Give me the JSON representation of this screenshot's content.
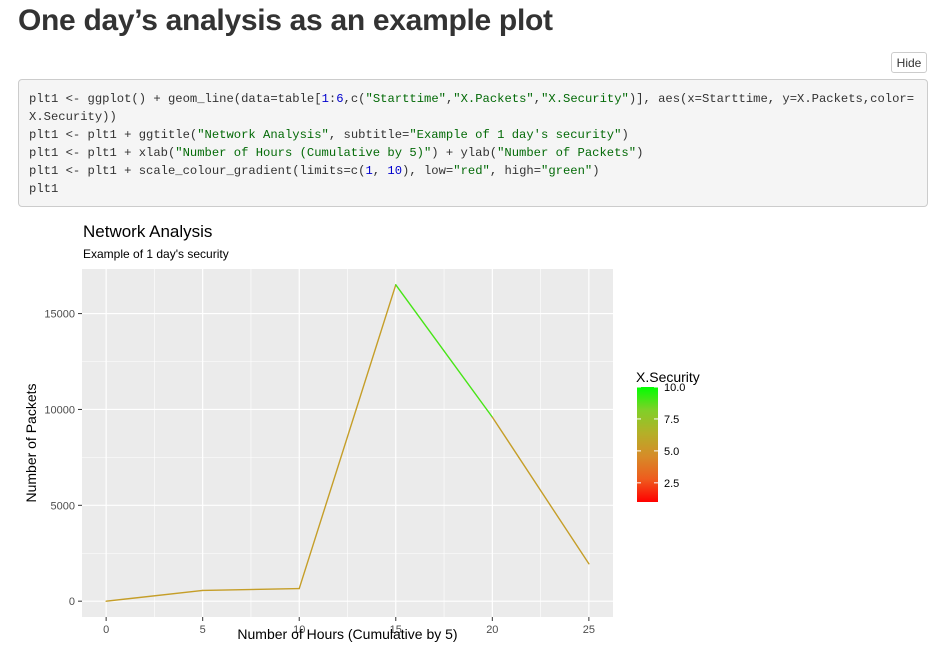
{
  "page": {
    "title": "One day’s analysis as an example plot",
    "hide_label": "Hide"
  },
  "code": {
    "lines": [
      [
        {
          "t": "plt1 <- ggplot() + geom_line(data=table[",
          "c": "plain"
        },
        {
          "t": "1",
          "c": "num"
        },
        {
          "t": ":",
          "c": "plain"
        },
        {
          "t": "6",
          "c": "num"
        },
        {
          "t": ",c(",
          "c": "plain"
        },
        {
          "t": "\"Starttime\"",
          "c": "str"
        },
        {
          "t": ",",
          "c": "plain"
        },
        {
          "t": "\"X.Packets\"",
          "c": "str"
        },
        {
          "t": ",",
          "c": "plain"
        },
        {
          "t": "\"X.Security\"",
          "c": "str"
        },
        {
          "t": ")], aes(x=Starttime, y=X.Packets,color=X.Security))",
          "c": "plain"
        }
      ],
      [
        {
          "t": "plt1 <- plt1 + ggtitle(",
          "c": "plain"
        },
        {
          "t": "\"Network Analysis\"",
          "c": "str"
        },
        {
          "t": ", subtitle=",
          "c": "plain"
        },
        {
          "t": "\"Example of 1 day's security\"",
          "c": "str"
        },
        {
          "t": ")",
          "c": "plain"
        }
      ],
      [
        {
          "t": "plt1 <- plt1 + xlab(",
          "c": "plain"
        },
        {
          "t": "\"Number of Hours (Cumulative by 5)\"",
          "c": "str"
        },
        {
          "t": ") + ylab(",
          "c": "plain"
        },
        {
          "t": "\"Number of Packets\"",
          "c": "str"
        },
        {
          "t": ")",
          "c": "plain"
        }
      ],
      [
        {
          "t": "plt1 <- plt1 + scale_colour_gradient(limits=c(",
          "c": "plain"
        },
        {
          "t": "1",
          "c": "num"
        },
        {
          "t": ", ",
          "c": "plain"
        },
        {
          "t": "10",
          "c": "num"
        },
        {
          "t": "), low=",
          "c": "plain"
        },
        {
          "t": "\"red\"",
          "c": "str"
        },
        {
          "t": ", high=",
          "c": "plain"
        },
        {
          "t": "\"green\"",
          "c": "str"
        },
        {
          "t": ")",
          "c": "plain"
        }
      ],
      [
        {
          "t": "plt1",
          "c": "plain"
        }
      ]
    ]
  },
  "chart_data": {
    "type": "line",
    "title": "Network Analysis",
    "subtitle": "Example of 1 day's security",
    "xlabel": "Number of Hours (Cumulative by 5)",
    "ylabel": "Number of Packets",
    "x": [
      0,
      5,
      10,
      15,
      20,
      25
    ],
    "y": [
      0,
      560,
      660,
      16500,
      9600,
      1950
    ],
    "color_values": [
      5.5,
      5.5,
      5.5,
      9.0,
      5.5,
      5.5
    ],
    "xlim": [
      -1.25,
      26.25
    ],
    "ylim": [
      -825,
      17325
    ],
    "x_ticks": [
      0,
      5,
      10,
      15,
      20,
      25
    ],
    "x_minor_ticks": [
      2.5,
      7.5,
      12.5,
      17.5,
      22.5
    ],
    "y_ticks": [
      0,
      5000,
      10000,
      15000
    ],
    "y_minor_ticks": [
      2500,
      7500,
      12500
    ],
    "grid": true,
    "legend": {
      "title": "X.Security",
      "placement": "right",
      "limits": [
        1,
        10
      ],
      "ticks": [
        10.0,
        7.5,
        5.0,
        2.5
      ],
      "tick_labels": [
        "10.0",
        "7.5",
        "5.0",
        "2.5"
      ],
      "low_color": "#ff0000",
      "high_color": "#00ff00"
    },
    "colors": {
      "panel_background": "#ebebeb",
      "grid": "#ffffff"
    }
  }
}
